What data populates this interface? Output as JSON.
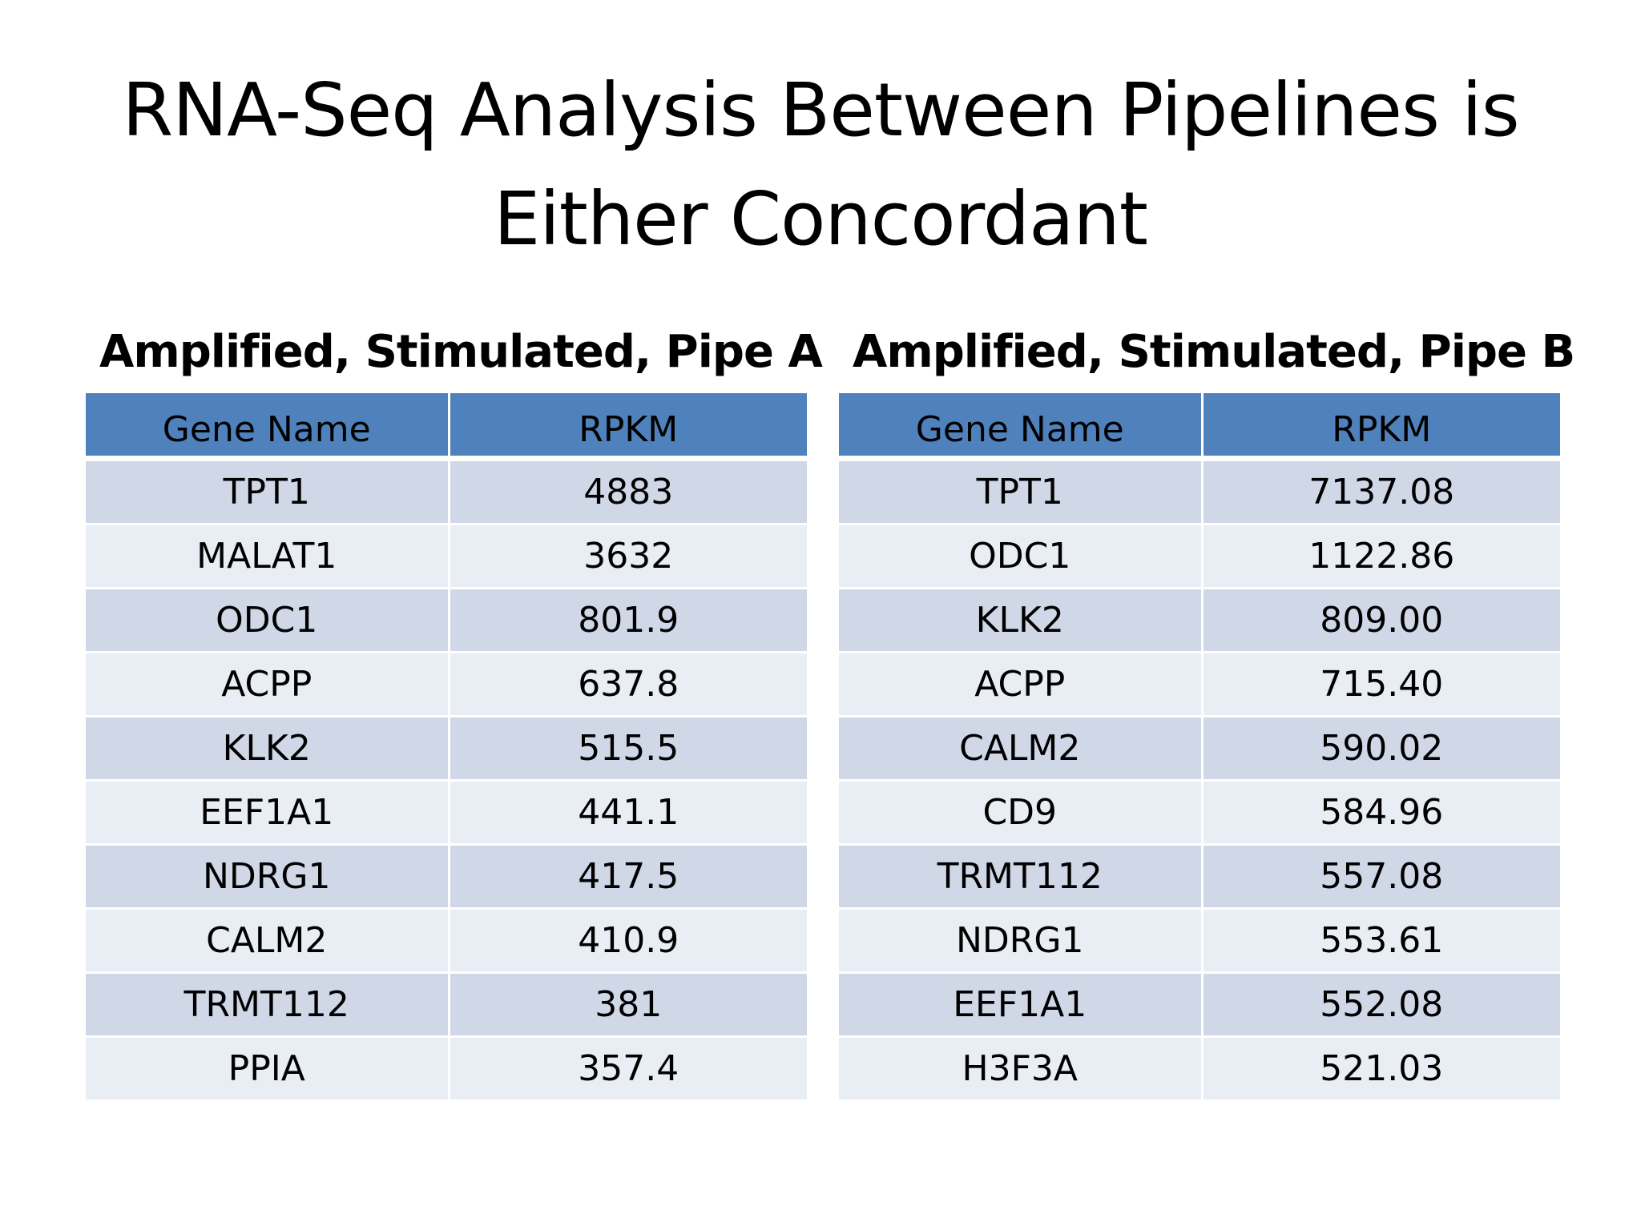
{
  "slide": {
    "title_line1": "RNA-Seq Analysis Between Pipelines is",
    "title_line2": "Either Concordant"
  },
  "tables": [
    {
      "heading": "Amplified, Stimulated, Pipe A",
      "columns": [
        "Gene Name",
        "RPKM"
      ],
      "rows": [
        [
          "TPT1",
          "4883"
        ],
        [
          "MALAT1",
          "3632"
        ],
        [
          "ODC1",
          "801.9"
        ],
        [
          "ACPP",
          "637.8"
        ],
        [
          "KLK2",
          "515.5"
        ],
        [
          "EEF1A1",
          "441.1"
        ],
        [
          "NDRG1",
          "417.5"
        ],
        [
          "CALM2",
          "410.9"
        ],
        [
          "TRMT112",
          "381"
        ],
        [
          "PPIA",
          "357.4"
        ]
      ]
    },
    {
      "heading": "Amplified, Stimulated, Pipe B",
      "columns": [
        "Gene Name",
        "RPKM"
      ],
      "rows": [
        [
          "TPT1",
          "7137.08"
        ],
        [
          "ODC1",
          "1122.86"
        ],
        [
          "KLK2",
          "809.00"
        ],
        [
          "ACPP",
          "715.40"
        ],
        [
          "CALM2",
          "590.02"
        ],
        [
          "CD9",
          "584.96"
        ],
        [
          "TRMT112",
          "557.08"
        ],
        [
          "NDRG1",
          "553.61"
        ],
        [
          "EEF1A1",
          "552.08"
        ],
        [
          "H3F3A",
          "521.03"
        ]
      ]
    }
  ],
  "colors": {
    "header_fill": "#4f81bd",
    "row_band_dark": "#d0d8e8",
    "row_band_light": "#e9edf4"
  }
}
